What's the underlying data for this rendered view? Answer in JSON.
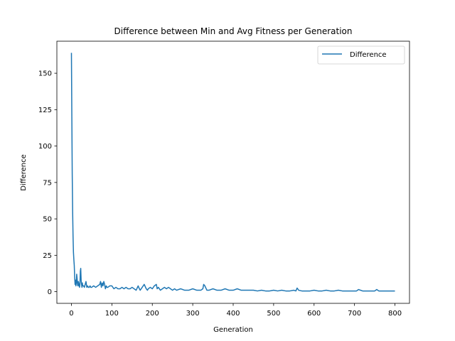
{
  "chart_data": {
    "type": "line",
    "title": "Difference between Min and Avg Fitness per Generation",
    "xlabel": "Generation",
    "ylabel": "Difference",
    "xlim": [
      -36,
      836
    ],
    "ylim": [
      -8,
      172
    ],
    "xticks": [
      0,
      100,
      200,
      300,
      400,
      500,
      600,
      700,
      800
    ],
    "yticks": [
      0,
      25,
      50,
      75,
      100,
      125,
      150
    ],
    "grid": false,
    "legend_position": "top-right",
    "series": [
      {
        "name": "Difference",
        "color": "#1f77b4",
        "x": [
          0,
          1,
          2,
          3,
          4,
          5,
          6,
          7,
          8,
          9,
          10,
          11,
          12,
          13,
          14,
          15,
          16,
          17,
          18,
          19,
          20,
          21,
          22,
          23,
          24,
          25,
          26,
          27,
          28,
          30,
          32,
          34,
          36,
          38,
          40,
          42,
          44,
          46,
          48,
          50,
          55,
          60,
          65,
          70,
          72,
          74,
          76,
          78,
          80,
          82,
          84,
          86,
          88,
          90,
          95,
          100,
          105,
          110,
          115,
          120,
          125,
          130,
          135,
          140,
          145,
          150,
          155,
          160,
          165,
          168,
          170,
          175,
          180,
          185,
          188,
          190,
          195,
          200,
          205,
          210,
          212,
          215,
          220,
          225,
          230,
          235,
          240,
          245,
          250,
          255,
          260,
          270,
          280,
          290,
          300,
          310,
          320,
          325,
          327,
          330,
          335,
          340,
          350,
          360,
          370,
          380,
          390,
          400,
          410,
          420,
          430,
          440,
          450,
          460,
          470,
          480,
          490,
          500,
          510,
          520,
          530,
          540,
          550,
          555,
          558,
          562,
          570,
          580,
          590,
          600,
          610,
          620,
          630,
          640,
          650,
          660,
          670,
          680,
          690,
          700,
          705,
          710,
          720,
          730,
          740,
          750,
          755,
          760,
          770,
          780,
          790,
          800
        ],
        "y": [
          164,
          120,
          80,
          55,
          38,
          27,
          22,
          18,
          10,
          5,
          8,
          4,
          6,
          12,
          9,
          5,
          4,
          7,
          6,
          4,
          3,
          5,
          14,
          16,
          8,
          5,
          3,
          6,
          4,
          4,
          3,
          5,
          7,
          3,
          4,
          3,
          3,
          4,
          3,
          3,
          4,
          3,
          4,
          5,
          7,
          3,
          6,
          4,
          7,
          5,
          2,
          4,
          3,
          3,
          4,
          4,
          2,
          3,
          2,
          2,
          3,
          2,
          3,
          2,
          2,
          3,
          2,
          1,
          4,
          2,
          1,
          3,
          5,
          2,
          1,
          2,
          3,
          2,
          4,
          5,
          2,
          3,
          1,
          2,
          3,
          2,
          3,
          2,
          1,
          2,
          1,
          2,
          1,
          1,
          2,
          1,
          1,
          2,
          5,
          4,
          1,
          1,
          2,
          1,
          1,
          2,
          1,
          1,
          2,
          1,
          1,
          1,
          1,
          0.5,
          1,
          0.5,
          0.5,
          1,
          0.5,
          1,
          0.5,
          0.5,
          1,
          0.5,
          2.5,
          1,
          0.5,
          0.5,
          0.5,
          1,
          0.5,
          0.5,
          1,
          0.5,
          0.5,
          1,
          0.5,
          0.5,
          0.5,
          0.5,
          0.5,
          1.5,
          0.5,
          0.5,
          0.5,
          0.5,
          1.5,
          0.5,
          0.5,
          0.5,
          0.5,
          0.5
        ]
      }
    ]
  }
}
